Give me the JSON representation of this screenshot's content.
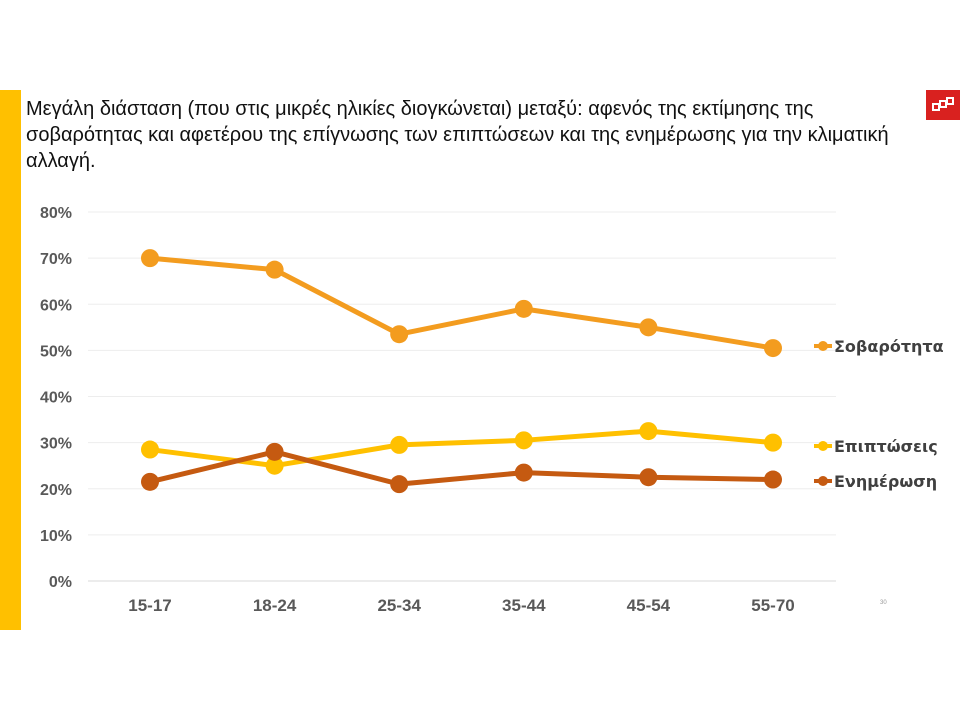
{
  "slide": {
    "title": "Μεγάλη διάσταση (που στις μικρές ηλικίες διογκώνεται) μεταξύ: αφενός της εκτίμησης της σοβαρότητας και  αφετέρου της επίγνωσης των επιπτώσεων και της ενημέρωσης για την κλιματική αλλαγή.",
    "accent_color": "#FFC000",
    "logo_color": "#D9211F",
    "logo_icon": "brand-logo-icon",
    "slide_number": "30"
  },
  "chart_data": {
    "type": "line",
    "categories": [
      "15-17",
      "18-24",
      "25-34",
      "35-44",
      "45-54",
      "55-70"
    ],
    "ylim": [
      0,
      80
    ],
    "yticks": [
      0,
      10,
      20,
      30,
      40,
      50,
      60,
      70,
      80
    ],
    "ytick_labels": [
      "0%",
      "10%",
      "20%",
      "30%",
      "40%",
      "50%",
      "60%",
      "70%",
      "80%"
    ],
    "grid": true,
    "legend_placement": "right, at series end",
    "series": [
      {
        "name": "Σοβαρότητα",
        "color": "#F39C1F",
        "values": [
          70,
          67.5,
          53.5,
          59,
          55,
          50.5
        ]
      },
      {
        "name": "Επιπτώσεις",
        "color": "#FFC000",
        "values": [
          28.5,
          25,
          29.5,
          30.5,
          32.5,
          30
        ]
      },
      {
        "name": "Ενημέρωση",
        "color": "#C55A11",
        "values": [
          21.5,
          28,
          21,
          23.5,
          22.5,
          22
        ]
      }
    ]
  }
}
